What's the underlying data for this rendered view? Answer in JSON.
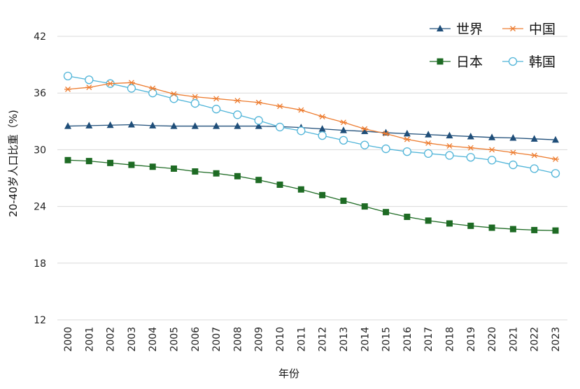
{
  "chart_data": {
    "type": "line",
    "title": "",
    "xlabel": "年份",
    "ylabel": "20-40岁人口比重（%)",
    "ylim": [
      12,
      42
    ],
    "yticks": [
      12,
      18,
      24,
      30,
      36,
      42
    ],
    "grid": true,
    "legend_position": "top-right",
    "categories": [
      "2000",
      "2001",
      "2002",
      "2003",
      "2004",
      "2005",
      "2006",
      "2007",
      "2008",
      "2009",
      "2010",
      "2011",
      "2012",
      "2013",
      "2014",
      "2015",
      "2016",
      "2017",
      "2018",
      "2019",
      "2020",
      "2021",
      "2022",
      "2023"
    ],
    "series": [
      {
        "name": "世界",
        "color": "#1f4e79",
        "marker": "triangle",
        "values": [
          32.5,
          32.55,
          32.6,
          32.65,
          32.55,
          32.5,
          32.5,
          32.5,
          32.5,
          32.5,
          32.45,
          32.35,
          32.2,
          32.05,
          31.95,
          31.8,
          31.7,
          31.6,
          31.5,
          31.4,
          31.3,
          31.25,
          31.15,
          31.05
        ]
      },
      {
        "name": "中国",
        "color": "#ed7d31",
        "marker": "asterisk",
        "values": [
          36.4,
          36.6,
          37.0,
          37.1,
          36.5,
          35.9,
          35.6,
          35.4,
          35.2,
          35.0,
          34.6,
          34.2,
          33.5,
          32.9,
          32.2,
          31.7,
          31.1,
          30.7,
          30.4,
          30.2,
          30.0,
          29.7,
          29.4,
          29.0
        ]
      },
      {
        "name": "日本",
        "color": "#1e6b24",
        "marker": "square",
        "values": [
          28.9,
          28.8,
          28.6,
          28.4,
          28.2,
          28.0,
          27.7,
          27.5,
          27.2,
          26.8,
          26.3,
          25.8,
          25.2,
          24.6,
          24.0,
          23.4,
          22.9,
          22.5,
          22.2,
          21.95,
          21.75,
          21.6,
          21.5,
          21.45
        ]
      },
      {
        "name": "韩国",
        "color": "#4fb4d8",
        "marker": "circle",
        "values": [
          37.8,
          37.4,
          37.0,
          36.5,
          36.0,
          35.4,
          34.9,
          34.3,
          33.7,
          33.1,
          32.4,
          32.0,
          31.5,
          31.0,
          30.5,
          30.1,
          29.8,
          29.6,
          29.4,
          29.2,
          28.9,
          28.4,
          28.0,
          27.5
        ]
      }
    ]
  }
}
